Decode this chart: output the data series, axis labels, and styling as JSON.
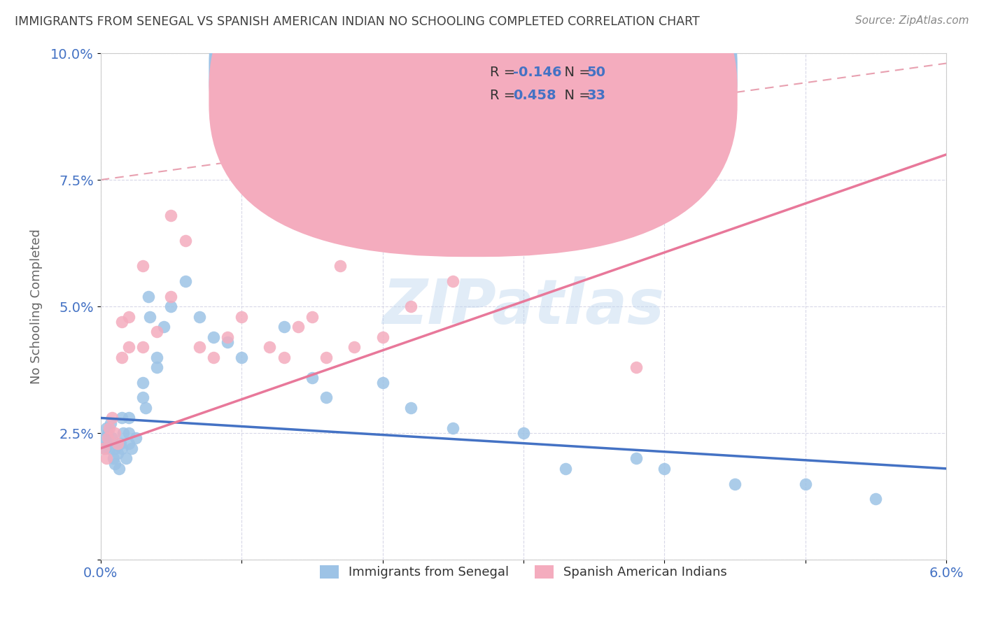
{
  "title": "IMMIGRANTS FROM SENEGAL VS SPANISH AMERICAN INDIAN NO SCHOOLING COMPLETED CORRELATION CHART",
  "source": "Source: ZipAtlas.com",
  "ylabel": "No Schooling Completed",
  "xlim": [
    0.0,
    0.06
  ],
  "ylim": [
    0.0,
    0.1
  ],
  "blue_color": "#9DC3E6",
  "pink_color": "#F4ACBE",
  "blue_line_color": "#4472C4",
  "pink_line_color": "#E8789A",
  "dashed_line_color": "#E8A0B0",
  "R_blue": -0.146,
  "N_blue": 50,
  "R_pink": 0.458,
  "N_pink": 33,
  "legend_label_blue": "Immigrants from Senegal",
  "legend_label_pink": "Spanish American Indians",
  "watermark_text": "ZIPatlas",
  "tick_color": "#4472C4",
  "grid_color": "#D8D8E8",
  "title_color": "#404040",
  "source_color": "#888888",
  "blue_scatter_x": [
    0.0002,
    0.0003,
    0.0004,
    0.0005,
    0.0005,
    0.0006,
    0.0007,
    0.0008,
    0.0009,
    0.001,
    0.001,
    0.0012,
    0.0013,
    0.0014,
    0.0015,
    0.0015,
    0.0016,
    0.0018,
    0.002,
    0.002,
    0.002,
    0.0022,
    0.0025,
    0.003,
    0.003,
    0.0032,
    0.0034,
    0.0035,
    0.004,
    0.004,
    0.0045,
    0.005,
    0.006,
    0.007,
    0.008,
    0.009,
    0.01,
    0.013,
    0.015,
    0.016,
    0.02,
    0.022,
    0.025,
    0.03,
    0.033,
    0.038,
    0.04,
    0.045,
    0.05,
    0.055
  ],
  "blue_scatter_y": [
    0.024,
    0.022,
    0.026,
    0.025,
    0.023,
    0.022,
    0.027,
    0.024,
    0.02,
    0.019,
    0.022,
    0.021,
    0.018,
    0.023,
    0.028,
    0.022,
    0.025,
    0.02,
    0.025,
    0.028,
    0.023,
    0.022,
    0.024,
    0.035,
    0.032,
    0.03,
    0.052,
    0.048,
    0.04,
    0.038,
    0.046,
    0.05,
    0.055,
    0.048,
    0.044,
    0.043,
    0.04,
    0.046,
    0.036,
    0.032,
    0.035,
    0.03,
    0.026,
    0.025,
    0.018,
    0.02,
    0.018,
    0.015,
    0.015,
    0.012
  ],
  "pink_scatter_x": [
    0.0002,
    0.0004,
    0.0005,
    0.0006,
    0.0008,
    0.001,
    0.0012,
    0.0015,
    0.0015,
    0.002,
    0.002,
    0.003,
    0.003,
    0.004,
    0.005,
    0.005,
    0.006,
    0.007,
    0.008,
    0.009,
    0.01,
    0.012,
    0.013,
    0.014,
    0.015,
    0.016,
    0.017,
    0.018,
    0.02,
    0.022,
    0.025,
    0.03,
    0.038
  ],
  "pink_scatter_y": [
    0.022,
    0.02,
    0.024,
    0.026,
    0.028,
    0.025,
    0.023,
    0.04,
    0.047,
    0.042,
    0.048,
    0.042,
    0.058,
    0.045,
    0.068,
    0.052,
    0.063,
    0.042,
    0.04,
    0.044,
    0.048,
    0.042,
    0.04,
    0.046,
    0.048,
    0.04,
    0.058,
    0.042,
    0.044,
    0.05,
    0.055,
    0.065,
    0.038
  ],
  "blue_line_x0": 0.0,
  "blue_line_y0": 0.028,
  "blue_line_x1": 0.06,
  "blue_line_y1": 0.018,
  "pink_line_x0": 0.0,
  "pink_line_y0": 0.022,
  "pink_line_x1": 0.06,
  "pink_line_y1": 0.08,
  "dash_line_x0": 0.0,
  "dash_line_y0": 0.075,
  "dash_line_x1": 0.06,
  "dash_line_y1": 0.098
}
